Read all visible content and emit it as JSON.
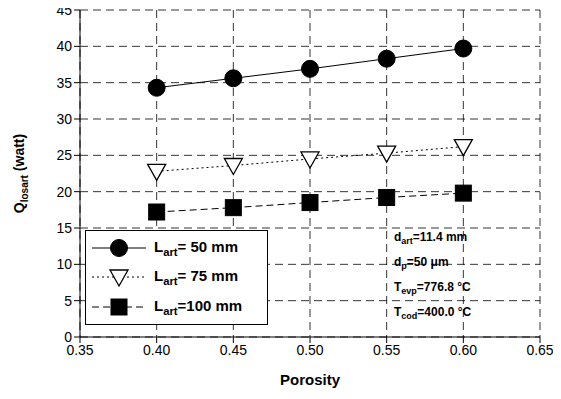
{
  "chart_data": {
    "type": "line",
    "x_label": "Porosity",
    "y_label": "Qlosart (watt)",
    "x": [
      0.4,
      0.45,
      0.5,
      0.55,
      0.6
    ],
    "series": [
      {
        "name": "Lart= 50 mm",
        "color": "#000000",
        "marker": "circle",
        "line_style": "solid",
        "values": [
          34.3,
          35.6,
          36.9,
          38.3,
          39.7
        ]
      },
      {
        "name": "Lart= 75 mm",
        "color": "#000000",
        "marker": "triangle-down-open",
        "line_style": "dotted",
        "values": [
          22.8,
          23.6,
          24.5,
          25.3,
          26.2
        ]
      },
      {
        "name": "Lart=100 mm",
        "color": "#000000",
        "marker": "square",
        "line_style": "dashed",
        "values": [
          17.2,
          17.8,
          18.5,
          19.2,
          19.8
        ]
      }
    ],
    "xlim": [
      0.35,
      0.65
    ],
    "xticks": [
      0.35,
      {
        "value": 0.4,
        "label": "0.40"
      },
      0.45,
      {
        "value": 0.5,
        "label": "0.50"
      },
      0.55,
      {
        "value": 0.6,
        "label": "0.60"
      },
      0.65
    ],
    "ylim": [
      0,
      45
    ],
    "yticks": [
      0,
      5,
      10,
      15,
      20,
      25,
      30,
      35,
      40,
      45
    ],
    "grid": true,
    "legend": "lower left",
    "annotations": [
      "dart=11.4 mm",
      "dp=50 μm",
      "Tevp=776.8 °C",
      "Tcod=400.0 °C"
    ]
  }
}
